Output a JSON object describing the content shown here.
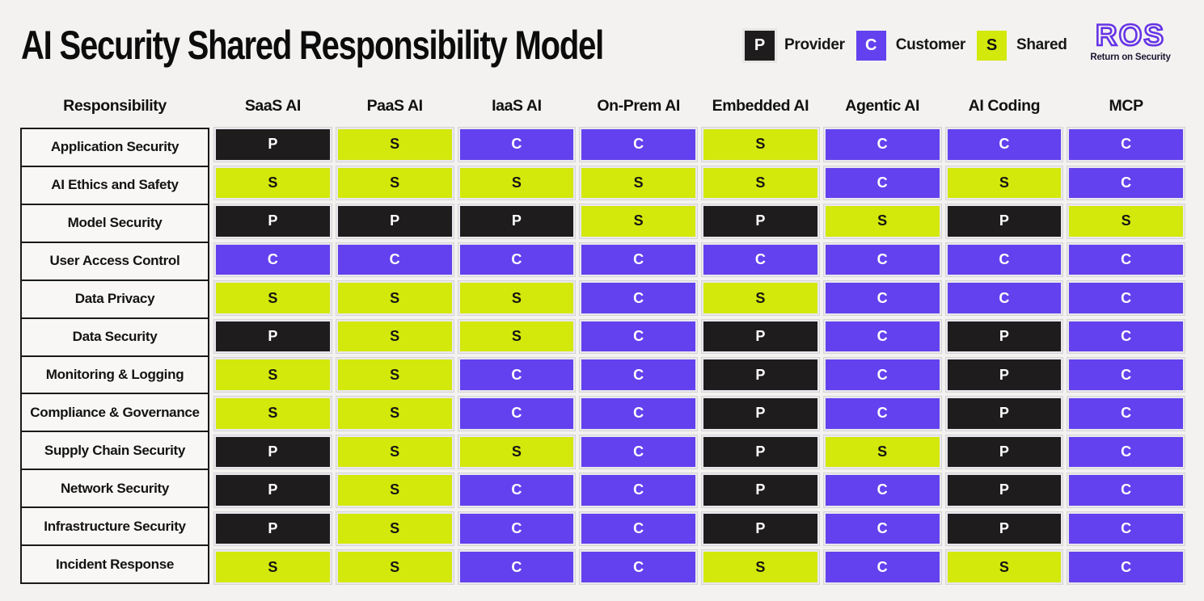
{
  "title": "AI Security Shared Responsibility Model",
  "legend": {
    "items": [
      {
        "key": "P",
        "label": "Provider",
        "color": "#1e1c1c",
        "text_color": "#ffffff"
      },
      {
        "key": "C",
        "label": "Customer",
        "color": "#6341ee",
        "text_color": "#ffffff"
      },
      {
        "key": "S",
        "label": "Shared",
        "color": "#d3e80b",
        "text_color": "#141414"
      }
    ]
  },
  "logo": {
    "text": "ROS",
    "subtext": "Return on Security",
    "color": "#6633e6"
  },
  "colors": {
    "provider": "#1e1c1c",
    "customer": "#6341ee",
    "shared": "#d3e80b",
    "background": "#f3f2f0"
  },
  "table": {
    "row_header": "Responsibility",
    "columns": [
      "SaaS AI",
      "PaaS AI",
      "IaaS AI",
      "On-Prem AI",
      "Embedded AI",
      "Agentic AI",
      "AI Coding",
      "MCP"
    ],
    "rows": [
      {
        "label": "Application Security",
        "values": [
          "P",
          "S",
          "C",
          "C",
          "S",
          "C",
          "C",
          "C"
        ]
      },
      {
        "label": "AI Ethics and Safety",
        "values": [
          "S",
          "S",
          "S",
          "S",
          "S",
          "C",
          "S",
          "C"
        ]
      },
      {
        "label": "Model Security",
        "values": [
          "P",
          "P",
          "P",
          "S",
          "P",
          "S",
          "P",
          "S"
        ]
      },
      {
        "label": "User Access Control",
        "values": [
          "C",
          "C",
          "C",
          "C",
          "C",
          "C",
          "C",
          "C"
        ]
      },
      {
        "label": "Data Privacy",
        "values": [
          "S",
          "S",
          "S",
          "C",
          "S",
          "C",
          "C",
          "C"
        ]
      },
      {
        "label": "Data Security",
        "values": [
          "P",
          "S",
          "S",
          "C",
          "P",
          "C",
          "P",
          "C"
        ]
      },
      {
        "label": "Monitoring & Logging",
        "values": [
          "S",
          "S",
          "C",
          "C",
          "P",
          "C",
          "P",
          "C"
        ]
      },
      {
        "label": "Compliance & Governance",
        "values": [
          "S",
          "S",
          "C",
          "C",
          "P",
          "C",
          "P",
          "C"
        ]
      },
      {
        "label": "Supply Chain Security",
        "values": [
          "P",
          "S",
          "S",
          "C",
          "P",
          "S",
          "P",
          "C"
        ]
      },
      {
        "label": "Network Security",
        "values": [
          "P",
          "S",
          "C",
          "C",
          "P",
          "C",
          "P",
          "C"
        ]
      },
      {
        "label": "Infrastructure Security",
        "values": [
          "P",
          "S",
          "C",
          "C",
          "P",
          "C",
          "P",
          "C"
        ]
      },
      {
        "label": "Incident Response",
        "values": [
          "S",
          "S",
          "C",
          "C",
          "S",
          "C",
          "S",
          "C"
        ]
      }
    ]
  }
}
